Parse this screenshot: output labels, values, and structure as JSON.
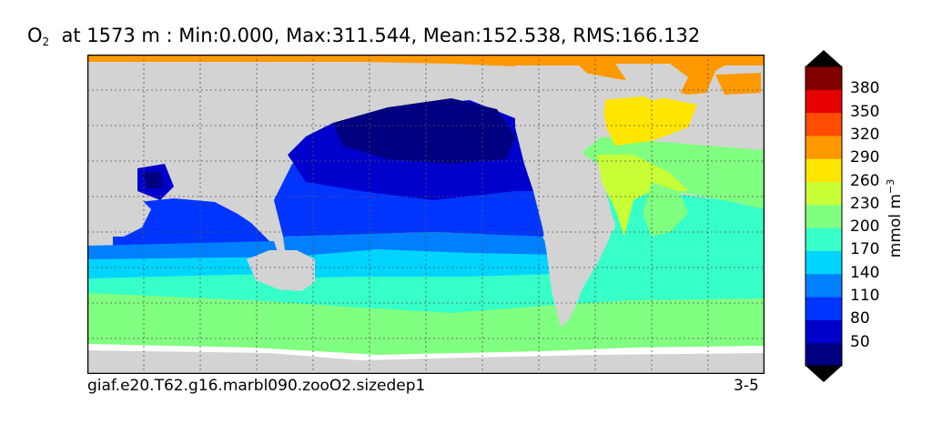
{
  "title": {
    "species": "O",
    "subscript": "2",
    "rest": "at 1573 m : Min:0.000, Max:311.544, Mean:152.538, RMS:166.132"
  },
  "footer": {
    "case_name": "giaf.e20.T62.g16.marbl090.zooO2.sizedep1",
    "years": "3-5"
  },
  "colorbar": {
    "label": "mmol m",
    "label_exponent": "−3",
    "ticks": [
      "380",
      "350",
      "320",
      "290",
      "260",
      "230",
      "200",
      "170",
      "140",
      "110",
      "80",
      "50"
    ],
    "colors": [
      "#000080",
      "#0000cd",
      "#0035ff",
      "#0080ff",
      "#00d5ff",
      "#36ffc9",
      "#80ff80",
      "#c9ff36",
      "#ffe600",
      "#ff9900",
      "#ff4d00",
      "#e60000",
      "#800000"
    ]
  },
  "map": {
    "land_color": "#d3d3d3",
    "missing_color": "#ffffff"
  }
}
